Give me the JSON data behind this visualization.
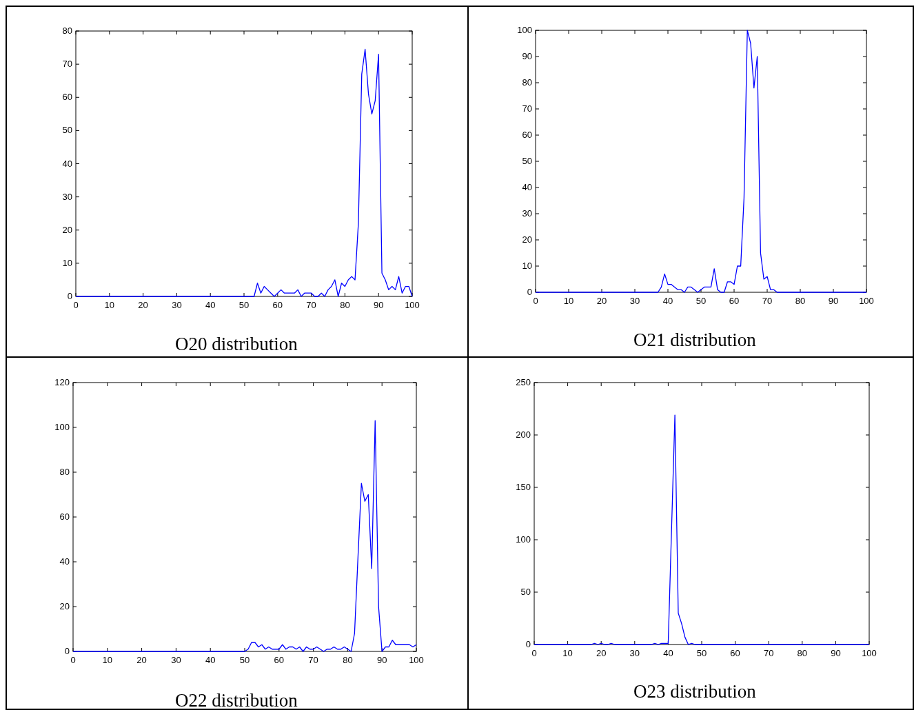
{
  "chart_data": [
    {
      "type": "line",
      "title": "O20 distribution",
      "xlim": [
        0,
        100
      ],
      "ylim": [
        0,
        80
      ],
      "xticks": [
        0,
        10,
        20,
        30,
        40,
        50,
        60,
        70,
        80,
        90,
        100
      ],
      "yticks": [
        0,
        10,
        20,
        30,
        40,
        50,
        60,
        70,
        80
      ],
      "grid": false,
      "series": [
        {
          "color": "#0000ff",
          "x": [
            0,
            53,
            54,
            55,
            56,
            57,
            58,
            59,
            60,
            61,
            62,
            63,
            64,
            65,
            66,
            67,
            68,
            69,
            70,
            71,
            72,
            73,
            74,
            75,
            76,
            77,
            78,
            79,
            80,
            81,
            82,
            83,
            84,
            85,
            86,
            87,
            88,
            89,
            90,
            91,
            92,
            93,
            94,
            95,
            96,
            97,
            98,
            99,
            100
          ],
          "values": [
            0,
            0,
            4,
            1,
            3,
            2,
            1,
            0,
            1,
            2,
            1,
            1,
            1,
            1,
            2,
            0,
            1,
            1,
            1,
            0,
            0,
            1,
            0,
            2,
            3,
            5,
            0,
            4,
            3,
            5,
            6,
            5,
            22,
            67,
            74.5,
            61,
            55,
            59,
            73,
            7,
            5,
            2,
            3,
            2,
            6,
            1,
            3,
            3,
            0
          ]
        }
      ]
    },
    {
      "type": "line",
      "title": "O21 distribution",
      "xlim": [
        0,
        100
      ],
      "ylim": [
        0,
        100
      ],
      "xticks": [
        0,
        10,
        20,
        30,
        40,
        50,
        60,
        70,
        80,
        90,
        100
      ],
      "yticks": [
        0,
        10,
        20,
        30,
        40,
        50,
        60,
        70,
        80,
        90,
        100
      ],
      "grid": false,
      "series": [
        {
          "color": "#0000ff",
          "x": [
            0,
            37,
            38,
            39,
            40,
            41,
            42,
            43,
            44,
            45,
            46,
            47,
            48,
            49,
            50,
            51,
            52,
            53,
            54,
            55,
            56,
            57,
            58,
            59,
            60,
            61,
            62,
            63,
            64,
            65,
            66,
            67,
            68,
            69,
            70,
            71,
            72,
            73,
            100
          ],
          "values": [
            0,
            0,
            2,
            7,
            3,
            3,
            2,
            1,
            1,
            0,
            2,
            2,
            1,
            0,
            1,
            2,
            2,
            2,
            9,
            1,
            0,
            0,
            4,
            4,
            3,
            10,
            10,
            36,
            100,
            95,
            78,
            90,
            15,
            5,
            6,
            1,
            1,
            0,
            0
          ]
        }
      ]
    },
    {
      "type": "line",
      "title": "O22 distribution",
      "xlim": [
        0,
        100
      ],
      "ylim": [
        0,
        120
      ],
      "xticks": [
        0,
        10,
        20,
        30,
        40,
        50,
        60,
        70,
        80,
        90,
        100
      ],
      "yticks": [
        0,
        20,
        40,
        60,
        80,
        100,
        120
      ],
      "grid": false,
      "series": [
        {
          "color": "#0000ff",
          "x": [
            0,
            50,
            51,
            52,
            53,
            54,
            55,
            56,
            57,
            58,
            59,
            60,
            61,
            62,
            63,
            64,
            65,
            66,
            67,
            68,
            69,
            70,
            71,
            72,
            73,
            74,
            75,
            76,
            77,
            78,
            79,
            80,
            81,
            82,
            83,
            84,
            85,
            86,
            87,
            88,
            89,
            90,
            91,
            92,
            93,
            94,
            98,
            99,
            100
          ],
          "values": [
            0,
            0,
            1,
            4,
            4,
            2,
            3,
            1,
            2,
            1,
            1,
            1,
            3,
            1,
            2,
            2,
            1,
            2,
            0,
            2,
            1,
            1,
            2,
            1,
            0,
            1,
            1,
            2,
            1,
            1,
            2,
            1,
            0,
            8,
            42,
            75,
            67,
            70,
            37,
            103,
            20,
            0,
            2,
            2,
            5,
            3,
            3,
            2,
            3
          ]
        }
      ]
    },
    {
      "type": "line",
      "title": "O23 distribution",
      "xlim": [
        0,
        100
      ],
      "ylim": [
        0,
        250
      ],
      "xticks": [
        0,
        10,
        20,
        30,
        40,
        50,
        60,
        70,
        80,
        90,
        100
      ],
      "yticks": [
        0,
        50,
        100,
        150,
        200,
        250
      ],
      "grid": false,
      "series": [
        {
          "color": "#0000ff",
          "x": [
            0,
            17,
            18,
            19,
            20,
            21,
            22,
            23,
            24,
            35,
            36,
            37,
            38,
            39,
            40,
            41,
            42,
            43,
            44,
            45,
            46,
            47,
            48,
            100
          ],
          "values": [
            0,
            0,
            1,
            0,
            1,
            0,
            0,
            1,
            0,
            0,
            1,
            0,
            1,
            1,
            1,
            110,
            219,
            30,
            20,
            7,
            0,
            1,
            0,
            0
          ]
        }
      ]
    }
  ]
}
